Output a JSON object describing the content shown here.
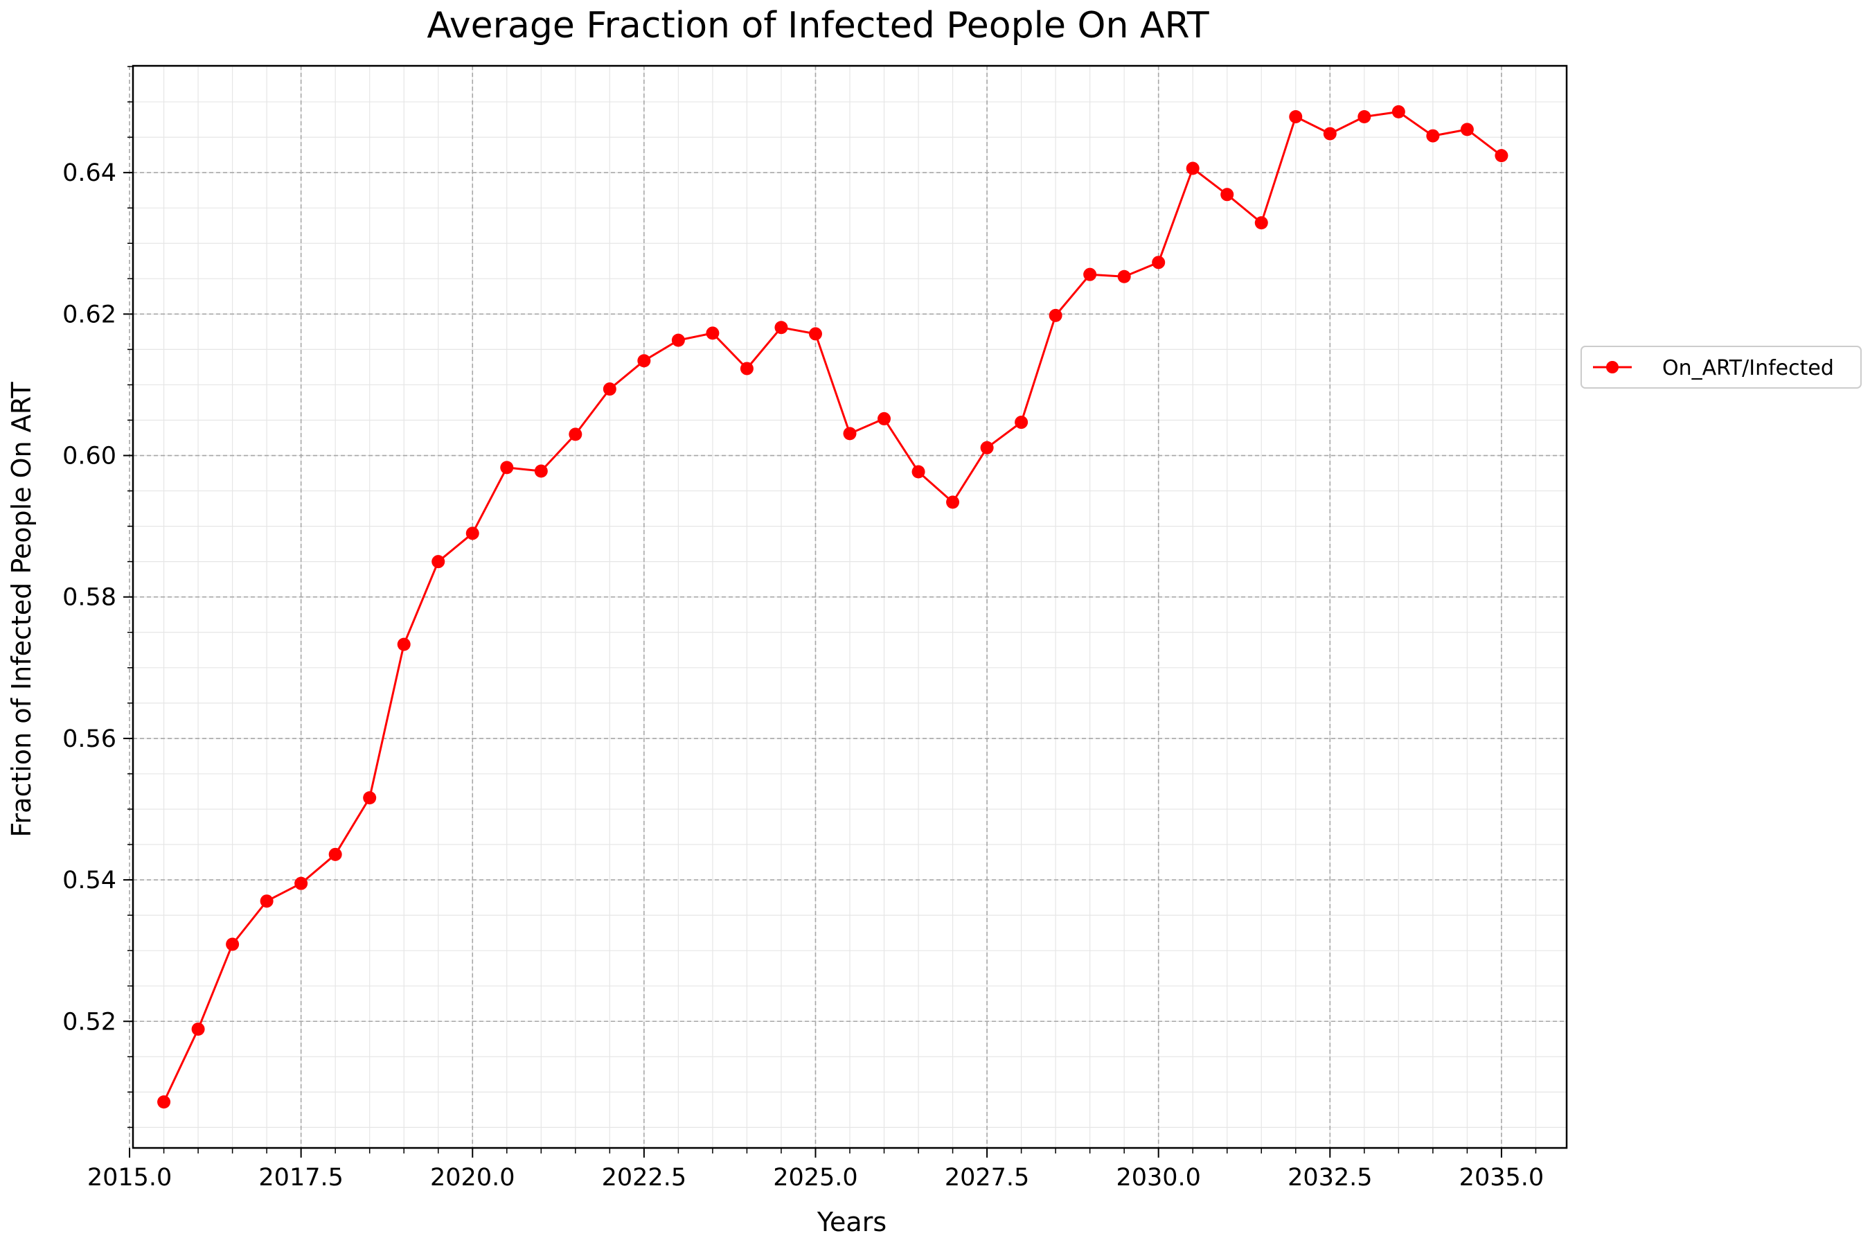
{
  "chart_data": {
    "type": "line",
    "title": "Average Fraction of Infected People On ART",
    "xlabel": "Years",
    "ylabel": "Fraction of Infected People On ART",
    "xlim": [
      2015.05,
      2035.95
    ],
    "ylim": [
      0.5021,
      0.6551
    ],
    "x_ticks": [
      2015.0,
      2017.5,
      2020.0,
      2022.5,
      2025.0,
      2027.5,
      2030.0,
      2032.5,
      2035.0
    ],
    "x_tick_labels": [
      "2015.0",
      "2017.5",
      "2020.0",
      "2022.5",
      "2025.0",
      "2027.5",
      "2030.0",
      "2032.5",
      "2035.0"
    ],
    "y_ticks": [
      0.52,
      0.54,
      0.56,
      0.58,
      0.6,
      0.62,
      0.64
    ],
    "y_tick_labels": [
      "0.52",
      "0.54",
      "0.56",
      "0.58",
      "0.60",
      "0.62",
      "0.64"
    ],
    "grid": true,
    "minor_grid": true,
    "legend_position": "right-outside",
    "series": [
      {
        "name": "On_ART/Infected",
        "color": "#ff0000",
        "marker": "circle",
        "x": [
          2015.5,
          2016.0,
          2016.5,
          2017.0,
          2017.5,
          2018.0,
          2018.5,
          2019.0,
          2019.5,
          2020.0,
          2020.5,
          2021.0,
          2021.5,
          2022.0,
          2022.5,
          2023.0,
          2023.5,
          2024.0,
          2024.5,
          2025.0,
          2025.5,
          2026.0,
          2026.5,
          2027.0,
          2027.5,
          2028.0,
          2028.5,
          2029.0,
          2029.5,
          2030.0,
          2030.5,
          2031.0,
          2031.5,
          2032.0,
          2032.5,
          2033.0,
          2033.5,
          2034.0,
          2034.5,
          2035.0
        ],
        "values": [
          0.5086,
          0.5189,
          0.5309,
          0.537,
          0.5395,
          0.5436,
          0.5516,
          0.5733,
          0.585,
          0.589,
          0.5983,
          0.5978,
          0.603,
          0.6094,
          0.6134,
          0.6163,
          0.6173,
          0.6123,
          0.6181,
          0.6172,
          0.6031,
          0.6052,
          0.5977,
          0.5934,
          0.6011,
          0.6047,
          0.6198,
          0.6256,
          0.6253,
          0.6273,
          0.6406,
          0.6369,
          0.6329,
          0.6479,
          0.6455,
          0.6479,
          0.6486,
          0.6452,
          0.6461,
          0.6424
        ]
      }
    ]
  }
}
